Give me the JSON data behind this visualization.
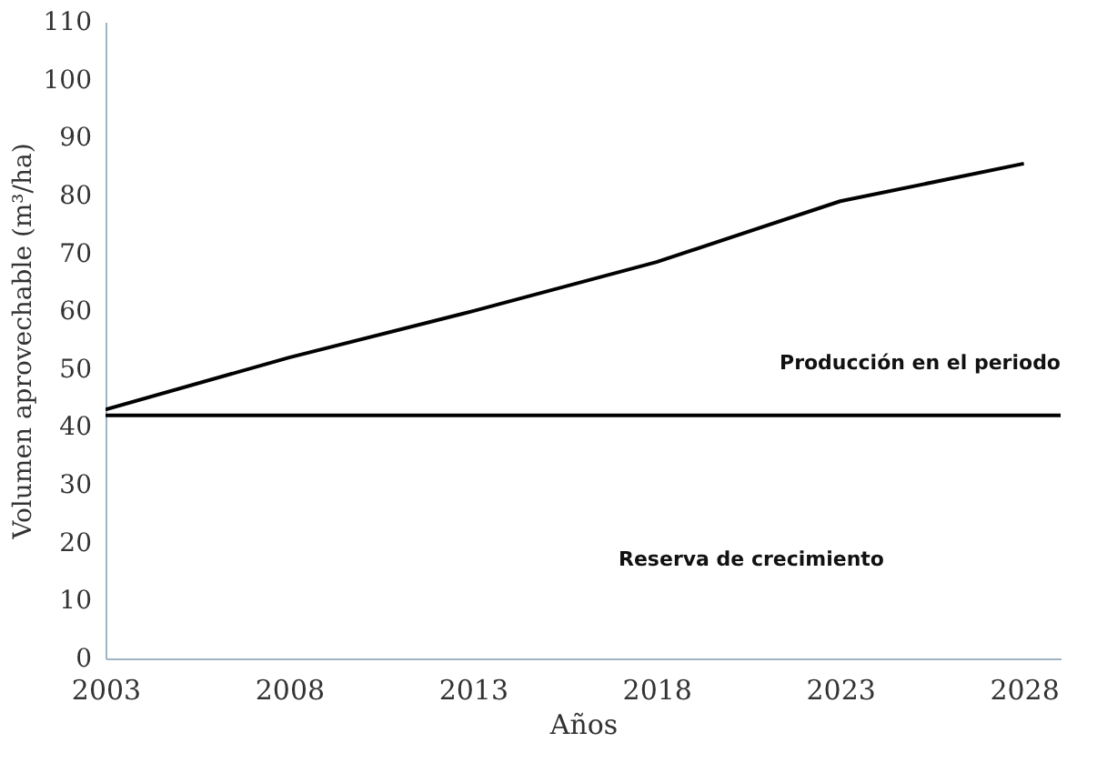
{
  "chart_data": {
    "type": "line",
    "x": [
      2003,
      2008,
      2013,
      2018,
      2023,
      2028
    ],
    "series": [
      {
        "color": "#000000",
        "values": [
          43,
          52,
          60,
          68.5,
          79,
          85.5
        ]
      }
    ],
    "xlabel": "Años",
    "ylabel": "Volumen aprovechable (m³/ha)",
    "xlim": [
      2003,
      2029
    ],
    "xticks": [
      2003,
      2008,
      2013,
      2018,
      2023,
      2028
    ],
    "ylim": [
      0,
      110
    ],
    "yticks": [
      0,
      10,
      20,
      30,
      40,
      50,
      60,
      70,
      80,
      90,
      100,
      110
    ],
    "ref_lines": [
      {
        "axis": "y",
        "value": 42,
        "color": "#000000"
      }
    ],
    "annotations": [
      "Producción en el periodo",
      "Reserva de crecimiento"
    ],
    "marker": "none",
    "line_style": "solid"
  }
}
